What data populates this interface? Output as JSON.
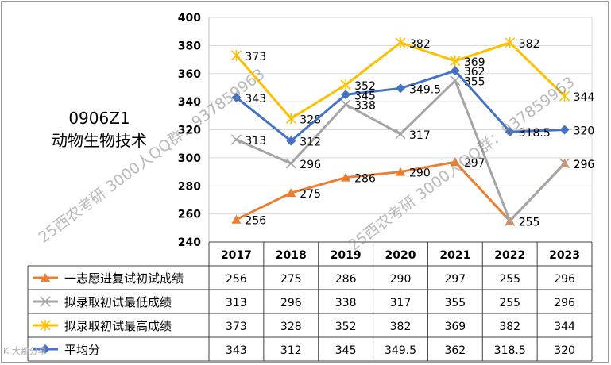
{
  "subject": {
    "code": "0906Z1",
    "name": "动物生物技术"
  },
  "watermarks": [
    "25西农考研 3000人QQ群：937859963",
    "25西农考研 3000人QQ群：937859963"
  ],
  "logo_text": "K 大都分享",
  "chart_data": {
    "type": "line",
    "title": "",
    "xlabel": "",
    "ylabel": "",
    "ylim": [
      240,
      400
    ],
    "yticks": [
      240,
      260,
      280,
      300,
      320,
      340,
      360,
      380,
      400
    ],
    "grid": true,
    "legend_placement": "data-table-left",
    "categories": [
      "2017",
      "2018",
      "2019",
      "2020",
      "2021",
      "2022",
      "2023"
    ],
    "series": [
      {
        "name": "一志愿进复试初试成绩",
        "color": "#ED7D31",
        "marker": "triangle",
        "values": [
          256,
          275,
          286,
          290,
          297,
          255,
          296
        ],
        "labels": [
          "256",
          "275",
          "286",
          "290",
          "297",
          "255",
          "296"
        ]
      },
      {
        "name": "拟录取初试最低成绩",
        "color": "#A5A5A5",
        "marker": "x",
        "values": [
          313,
          296,
          338,
          317,
          355,
          255,
          296
        ],
        "labels": [
          "313",
          "296",
          "338",
          "317",
          "355",
          "255",
          "296"
        ]
      },
      {
        "name": "拟录取初试最高成绩",
        "color": "#FFC000",
        "marker": "star",
        "values": [
          373,
          328,
          352,
          382,
          369,
          382,
          344
        ],
        "labels": [
          "373",
          "328",
          "352",
          "382",
          "369",
          "382",
          "344"
        ]
      },
      {
        "name": "平均分",
        "color": "#4472C4",
        "marker": "diamond",
        "values": [
          343,
          312,
          345,
          349.5,
          362,
          318.5,
          320
        ],
        "labels": [
          "343",
          "312",
          "345",
          "349.5",
          "362",
          "318.5",
          "320"
        ]
      }
    ]
  }
}
